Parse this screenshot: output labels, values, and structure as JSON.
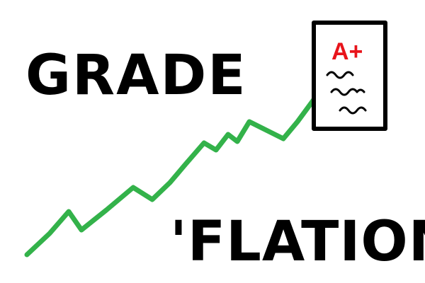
{
  "title_top": "GRADE",
  "title_bottom": "'FLATION",
  "report_card": {
    "grade": "A+",
    "icon": "report-card-icon",
    "lines_icon": "scribble-lines-icon"
  },
  "colors": {
    "ink": "#000000",
    "trend_line": "#33b24a",
    "grade": "#e8141b",
    "background": "#ffffff"
  }
}
